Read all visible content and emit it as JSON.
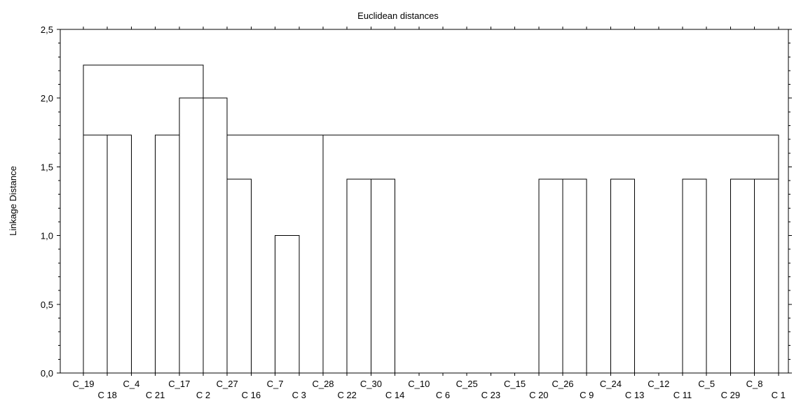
{
  "chart_data": {
    "type": "dendrogram",
    "title": "Euclidean distances",
    "ylabel": "Linkage Distance",
    "xlabel": "",
    "ylim": [
      0,
      2.5
    ],
    "yticks": [
      "0,0",
      "0,5",
      "1,0",
      "1,5",
      "2,0",
      "2,5"
    ],
    "ytick_values": [
      0,
      0.5,
      1.0,
      1.5,
      2.0,
      2.5
    ],
    "grid": false,
    "leaves": [
      "C_19",
      "C_18",
      "C_4",
      "C_21",
      "C_17",
      "C_2",
      "C_27",
      "C_16",
      "C_7",
      "C_3",
      "C_28",
      "C_22",
      "C_30",
      "C_14",
      "C_10",
      "C_6",
      "C_25",
      "C_23",
      "C_15",
      "C_20",
      "C_26",
      "C_9",
      "C_24",
      "C_13",
      "C_12",
      "C_11",
      "C_5",
      "C_29",
      "C_8",
      "C_1"
    ],
    "leaf_labels_shown": [
      "C_19",
      "C 18",
      "C_4",
      "C 21",
      "C_17",
      "C 2",
      "C_27",
      "C 16",
      "C_7",
      "C 3",
      "C_28",
      "C 22",
      "C_30",
      "C 14",
      "C_10",
      "C 6",
      "C_25",
      "C 23",
      "C_15",
      "C 20",
      "C_26",
      "C 9",
      "C_24",
      "C 13",
      "C_12",
      "C 11",
      "C_5",
      "C 29",
      "C_8",
      "C 1"
    ],
    "merges": [
      {
        "left": "C_7",
        "right": "C_3",
        "height": 1.0
      },
      {
        "left": "C_27",
        "right": "C_16",
        "height": 1.41
      },
      {
        "left": "C_22",
        "right": "C_30",
        "height": 1.41
      },
      {
        "left": "C_30",
        "right": "C_14",
        "height": 1.41
      },
      {
        "left": "C_20",
        "right": "C_26",
        "height": 1.41
      },
      {
        "left": "C_26",
        "right": "C_9",
        "height": 1.41
      },
      {
        "left": "C_24",
        "right": "C_13",
        "height": 1.41
      },
      {
        "left": "C_5",
        "right": "C_11",
        "height": 1.41
      },
      {
        "left": "C_8",
        "right": "C_29",
        "height": 1.41
      },
      {
        "left": "C_8",
        "right": "C_1",
        "height": 1.41
      },
      {
        "left": "C_19",
        "right": "C_18",
        "height": 1.73
      },
      {
        "left": "C_18",
        "right": "C_4",
        "height": 1.73
      },
      {
        "left": "C_17",
        "right": "C_21",
        "height": 1.73
      },
      {
        "left": "C_27",
        "right": "C_28",
        "height": 1.73
      },
      {
        "left": "C_28",
        "right": "C_1",
        "height": 1.73
      },
      {
        "left": "C_17",
        "right": "C_2",
        "height": 2.0
      },
      {
        "left": "C_2",
        "right": "C_27",
        "height": 2.0
      },
      {
        "left": "C_19",
        "right": "C_2",
        "height": 2.24
      }
    ]
  }
}
